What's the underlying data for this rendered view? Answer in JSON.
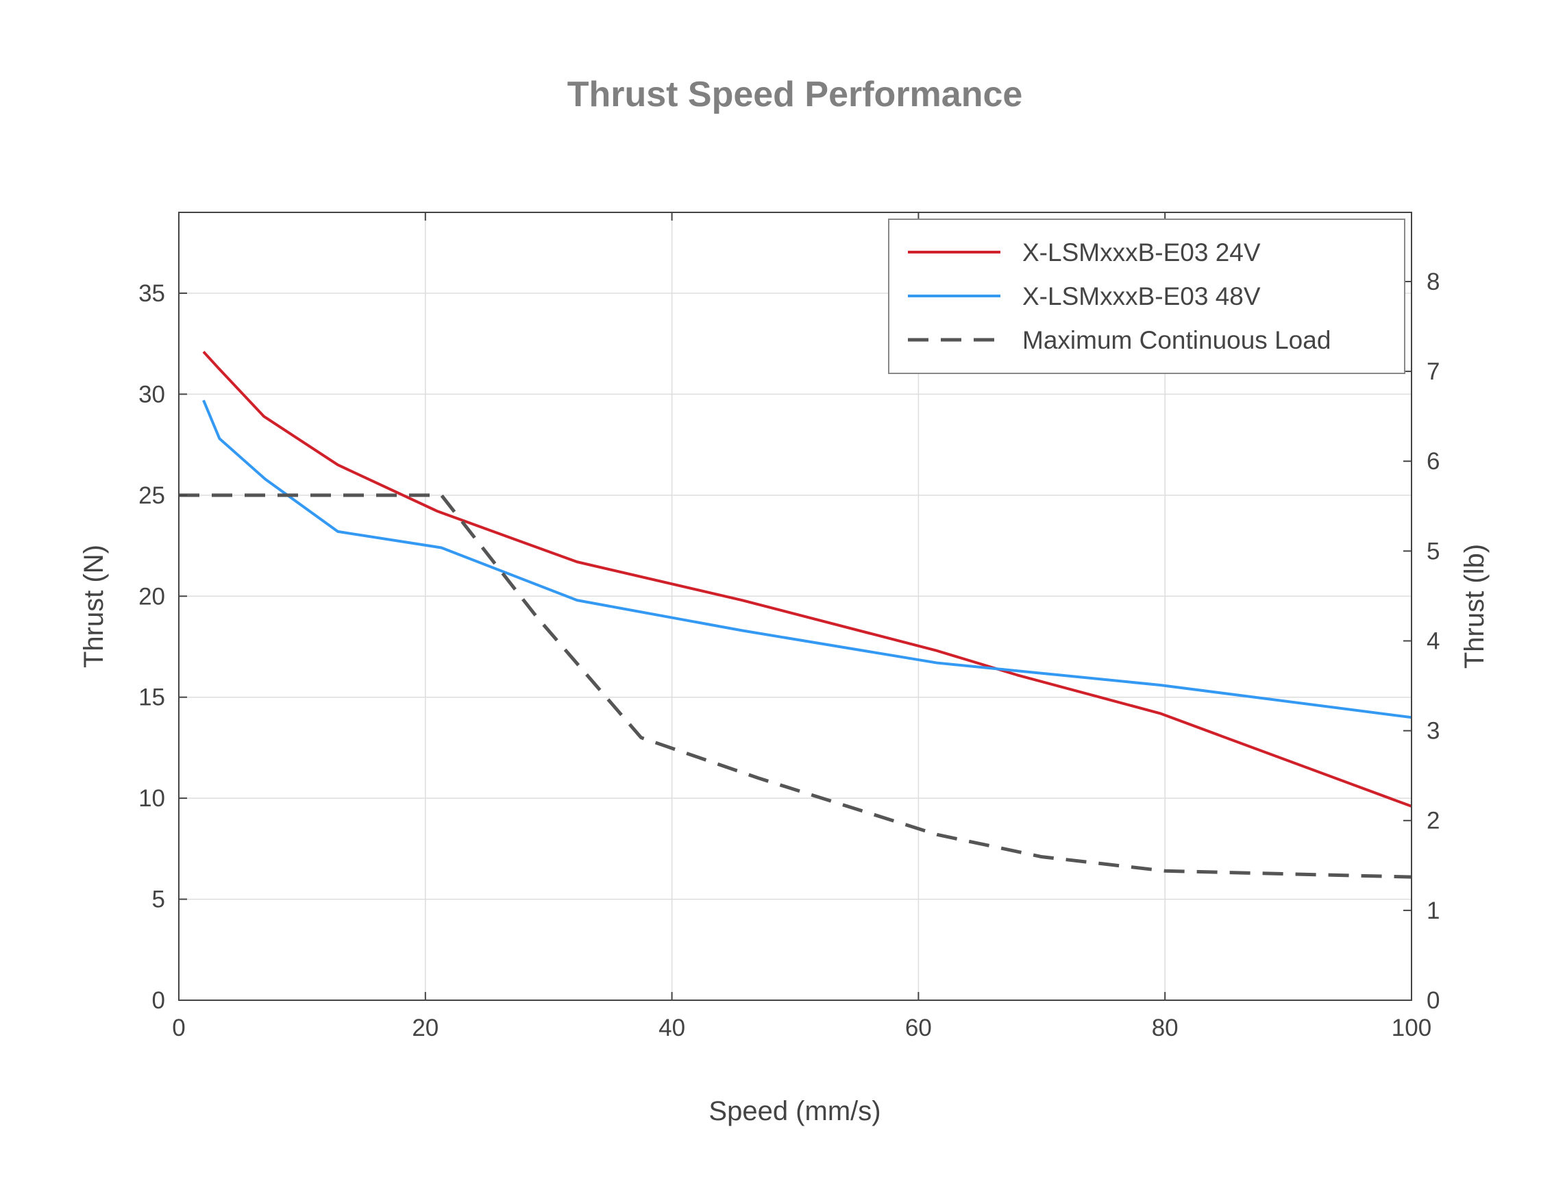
{
  "chart_data": {
    "type": "line",
    "title": "Thrust Speed Performance",
    "xlabel": "Speed (mm/s)",
    "ylabel": "Thrust (N)",
    "y2label": "Thrust (lb)",
    "xlim": [
      0,
      100
    ],
    "ylim": [
      0,
      39
    ],
    "y2lim": [
      0,
      8.77
    ],
    "xticks": [
      0,
      20,
      40,
      60,
      80,
      100
    ],
    "yticks": [
      0,
      5,
      10,
      15,
      20,
      25,
      30,
      35
    ],
    "y2ticks": [
      0,
      1,
      2,
      3,
      4,
      5,
      6,
      7,
      8
    ],
    "grid": true,
    "legend_position": "top-right",
    "series": [
      {
        "name": "X-LSMxxxB-E03 24V",
        "color": "#d0202a",
        "style": "solid",
        "x": [
          2,
          3.2,
          6.9,
          12.9,
          21,
          32.3,
          45.7,
          61.5,
          68,
          79.6,
          100
        ],
        "y": [
          32.1,
          31.3,
          28.9,
          26.5,
          24.2,
          21.7,
          19.8,
          17.3,
          16.1,
          14.2,
          9.6
        ]
      },
      {
        "name": "X-LSMxxxB-E03 48V",
        "color": "#3399f3",
        "style": "solid",
        "x": [
          2,
          3.3,
          7,
          12.9,
          21.3,
          32.3,
          45.7,
          61.5,
          79.6,
          100
        ],
        "y": [
          29.7,
          27.8,
          25.8,
          23.2,
          22.4,
          19.8,
          18.3,
          16.7,
          15.6,
          14.0
        ]
      },
      {
        "name": "Maximum Continuous Load",
        "color": "#555555",
        "style": "dashed",
        "x": [
          0,
          20,
          21.3,
          29,
          37.5,
          47,
          61.5,
          70,
          80,
          100
        ],
        "y": [
          25,
          25,
          25,
          19,
          13,
          11,
          8.2,
          7.1,
          6.4,
          6.1
        ]
      }
    ]
  }
}
